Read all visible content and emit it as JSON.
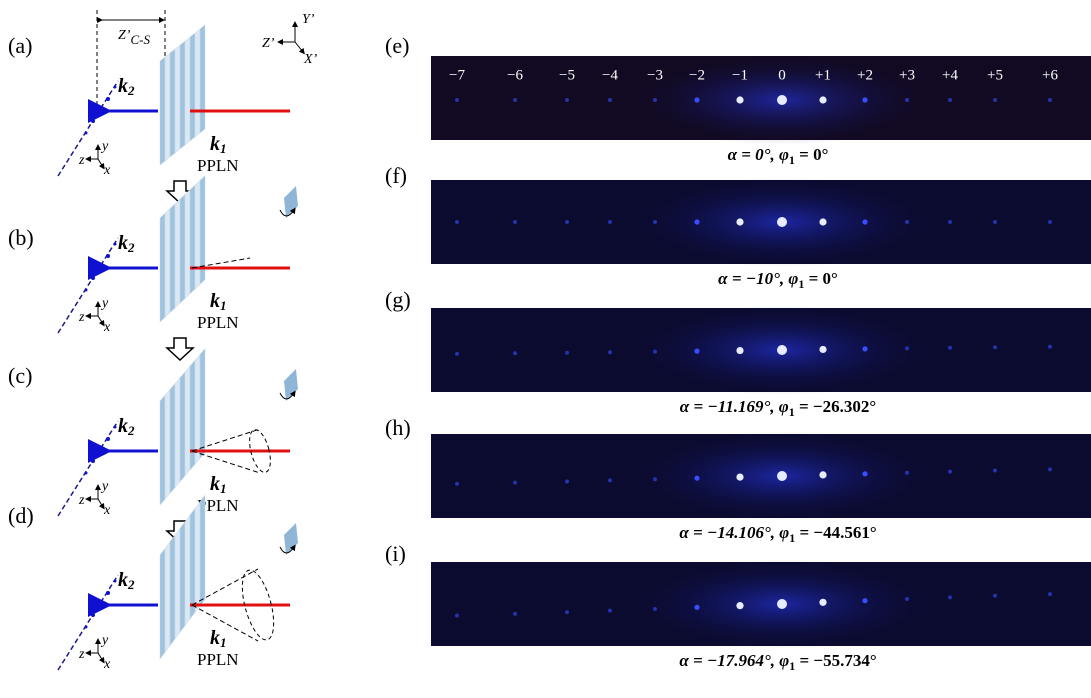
{
  "left": {
    "bracket_label": {
      "main": "Z’",
      "sub": "C-S"
    },
    "axes": {
      "z": "Z’",
      "y": "Y’",
      "x": "X’"
    },
    "rows": [
      {
        "label": "(a)",
        "k2": "k",
        "k2_sub": "2",
        "k1": "k",
        "k1_sub": "1",
        "crystal": "PPLN",
        "z": "z",
        "y": "y",
        "x": "x"
      },
      {
        "label": "(b)",
        "k2": "k",
        "k2_sub": "2",
        "k1": "k",
        "k1_sub": "1",
        "crystal": "PPLN",
        "z": "z",
        "y": "y",
        "x": "x"
      },
      {
        "label": "(c)",
        "k2": "k",
        "k2_sub": "2",
        "k1": "k",
        "k1_sub": "1",
        "crystal": "PPLN",
        "z": "z",
        "y": "y",
        "x": "x"
      },
      {
        "label": "(d)",
        "k2": "k",
        "k2_sub": "2",
        "k1": "k",
        "k1_sub": "1",
        "crystal": "PPLN",
        "z": "z",
        "y": "y",
        "x": "x"
      }
    ]
  },
  "right": {
    "orders": [
      "−7",
      "−6",
      "−5",
      "−4",
      "−3",
      "−2",
      "−1",
      "0",
      "+1",
      "+2",
      "+3",
      "+4",
      "+5",
      "+6"
    ],
    "panels": [
      {
        "label": "(e)",
        "caption": {
          "lead": "α = 0°, φ",
          "sub": "1",
          "tail": " = 0°"
        }
      },
      {
        "label": "(f)",
        "caption": {
          "lead": "α = −10°, φ",
          "sub": "1",
          "tail": " = 0°"
        }
      },
      {
        "label": "(g)",
        "caption": {
          "lead": "α = −11.169°, φ",
          "sub": "1",
          "tail": " = −26.302°"
        }
      },
      {
        "label": "(h)",
        "caption": {
          "lead": "α = −14.106°, φ",
          "sub": "1",
          "tail": " = −44.561°"
        }
      },
      {
        "label": "(i)",
        "caption": {
          "lead": "α = −17.964°, φ",
          "sub": "1",
          "tail": " = −55.734°"
        }
      }
    ]
  }
}
